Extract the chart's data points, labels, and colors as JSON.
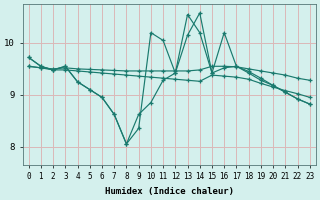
{
  "xlabel": "Humidex (Indice chaleur)",
  "background_color": "#d4f0ed",
  "grid_color": "#dbb8b8",
  "line_color": "#1a7a6e",
  "xlim": [
    -0.5,
    23.5
  ],
  "ylim": [
    7.65,
    10.75
  ],
  "xticks": [
    0,
    1,
    2,
    3,
    4,
    5,
    6,
    7,
    8,
    9,
    10,
    11,
    12,
    13,
    14,
    15,
    16,
    17,
    18,
    19,
    20,
    21,
    22,
    23
  ],
  "yticks": [
    8,
    9,
    10
  ],
  "curve_zigzag_y": [
    9.72,
    9.55,
    9.48,
    9.55,
    9.25,
    9.1,
    8.95,
    8.62,
    8.05,
    8.62,
    8.85,
    9.28,
    9.42,
    10.15,
    10.58,
    9.42,
    10.2,
    9.55,
    9.42,
    9.28,
    9.18,
    9.05,
    8.92,
    8.82
  ],
  "curve_spike_y": [
    9.72,
    9.55,
    9.48,
    9.55,
    9.25,
    9.1,
    8.95,
    8.62,
    8.05,
    8.35,
    10.2,
    10.05,
    9.42,
    10.55,
    10.2,
    9.42,
    9.52,
    9.55,
    9.45,
    9.32,
    9.18,
    9.05,
    8.92,
    8.82
  ],
  "line_flat1_y": [
    9.55,
    9.52,
    9.5,
    9.52,
    9.5,
    9.49,
    9.48,
    9.47,
    9.46,
    9.46,
    9.46,
    9.46,
    9.46,
    9.46,
    9.48,
    9.55,
    9.55,
    9.54,
    9.5,
    9.46,
    9.42,
    9.38,
    9.32,
    9.28
  ],
  "line_flat2_y": [
    9.55,
    9.52,
    9.48,
    9.48,
    9.46,
    9.44,
    9.42,
    9.4,
    9.38,
    9.36,
    9.34,
    9.32,
    9.3,
    9.28,
    9.26,
    9.38,
    9.36,
    9.34,
    9.3,
    9.22,
    9.15,
    9.08,
    9.02,
    8.95
  ]
}
